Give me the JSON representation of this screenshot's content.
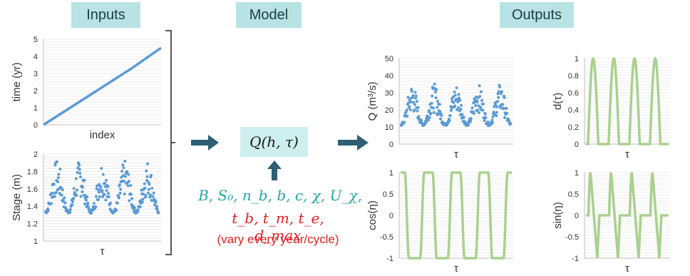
{
  "headers": {
    "inputs": "Inputs",
    "model": "Model",
    "outputs": "Outputs"
  },
  "model": {
    "formula": "Q(h, τ)",
    "params_line1": "B, S₀, n_b, b, c, χ, U_χ,",
    "params_line2": "t_b, t_m, t_e, d_max",
    "note": "(vary every year/cycle)"
  },
  "colors": {
    "blue": "#5b9bd5",
    "green": "#a9d18e",
    "arrow": "#2f5f73",
    "header_bg": "#b7e3e4",
    "formula_bg": "#cfeef0"
  },
  "chart_data": [
    {
      "id": "time-chart",
      "type": "line",
      "xlabel": "index",
      "ylabel": "time (yr)",
      "ylim": [
        0,
        5
      ],
      "yticks": [
        "0",
        "1",
        "2",
        "3",
        "4",
        "5"
      ],
      "grid": true,
      "x": [
        0,
        0.25,
        0.5,
        0.75,
        1.0
      ],
      "y": [
        0,
        1.1,
        2.2,
        3.3,
        4.5
      ]
    },
    {
      "id": "stage-chart",
      "type": "scatter",
      "xlabel": "τ",
      "ylabel": "Stage (m)",
      "ylim": [
        1,
        2
      ],
      "yticks": [
        "1",
        "1.2",
        "1.4",
        "1.6",
        "1.8",
        "2"
      ],
      "grid": true,
      "description_values": {
        "baseline": 1.3,
        "peak_max": 2.0,
        "peaks_per_series": 5
      }
    },
    {
      "id": "q-chart",
      "type": "scatter",
      "xlabel": "τ",
      "ylabel": "Q (m³/s)",
      "ylim": [
        0,
        50
      ],
      "yticks": [
        "0",
        "10",
        "20",
        "30",
        "40",
        "50"
      ],
      "grid": true,
      "description_values": {
        "baseline": 10,
        "peak_max": 38,
        "peaks_per_series": 5
      }
    },
    {
      "id": "d-chart",
      "type": "line",
      "xlabel": "τ",
      "ylabel": "d(τ)",
      "ylim": [
        0,
        1
      ],
      "yticks": [
        "0",
        "0.2",
        "0.4",
        "0.6",
        "0.8",
        "1"
      ],
      "grid": true,
      "description_values": {
        "cycles": 4,
        "max": 1,
        "min": 0
      }
    },
    {
      "id": "cos-chart",
      "type": "line",
      "xlabel": "τ",
      "ylabel": "cos(η)",
      "ylim": [
        -1,
        1
      ],
      "yticks": [
        "-1",
        "-0.5",
        "0",
        "0.5",
        "1"
      ],
      "grid": true,
      "description_values": {
        "cycles": 4,
        "max": 1,
        "min": -1
      }
    },
    {
      "id": "sin-chart",
      "type": "line",
      "xlabel": "τ",
      "ylabel": "sin(η)",
      "ylim": [
        -1,
        1
      ],
      "yticks": [
        "-1",
        "-0.5",
        "0",
        "0.5",
        "1"
      ],
      "grid": true,
      "description_values": {
        "cycles": 4,
        "max": 1,
        "min": -1
      }
    }
  ]
}
